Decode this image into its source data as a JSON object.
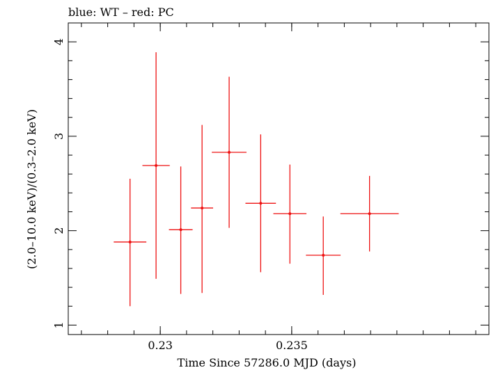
{
  "chart_data": {
    "type": "scatter",
    "title": "blue: WT – red: PC",
    "xlabel": "Time Since 57286.0 MJD (days)",
    "ylabel": "(2.0–10.0 keV)/(0.3–2.0 keV)",
    "xlim": [
      0.2265,
      0.2425
    ],
    "ylim": [
      0.9,
      4.2
    ],
    "x_ticks": [
      0.23,
      0.235
    ],
    "x_tick_labels": [
      "0.23",
      "0.235"
    ],
    "y_ticks": [
      1,
      2,
      3,
      4
    ],
    "y_tick_labels": [
      "1",
      "2",
      "3",
      "4"
    ],
    "grid": false,
    "series": [
      {
        "color": "#ee1111",
        "points": [
          {
            "x": 0.22885,
            "xerr": 0.00062,
            "y": 1.88,
            "ylo": 1.2,
            "yhi": 2.55
          },
          {
            "x": 0.22984,
            "xerr": 0.00052,
            "y": 2.69,
            "ylo": 1.49,
            "yhi": 3.89
          },
          {
            "x": 0.23078,
            "xerr": 0.00045,
            "y": 2.01,
            "ylo": 1.33,
            "yhi": 2.68
          },
          {
            "x": 0.23159,
            "xerr": 0.00042,
            "y": 2.24,
            "ylo": 1.34,
            "yhi": 3.12
          },
          {
            "x": 0.23262,
            "xerr": 0.00066,
            "y": 2.83,
            "ylo": 2.03,
            "yhi": 3.63
          },
          {
            "x": 0.23382,
            "xerr": 0.00058,
            "y": 2.29,
            "ylo": 1.56,
            "yhi": 3.02
          },
          {
            "x": 0.23493,
            "xerr": 0.00063,
            "y": 2.18,
            "ylo": 1.65,
            "yhi": 2.7
          },
          {
            "x": 0.2362,
            "xerr": 0.00066,
            "y": 1.74,
            "ylo": 1.32,
            "yhi": 2.15
          },
          {
            "x": 0.23796,
            "xerr": 0.00111,
            "y": 2.18,
            "ylo": 1.78,
            "yhi": 2.58
          }
        ]
      }
    ]
  }
}
